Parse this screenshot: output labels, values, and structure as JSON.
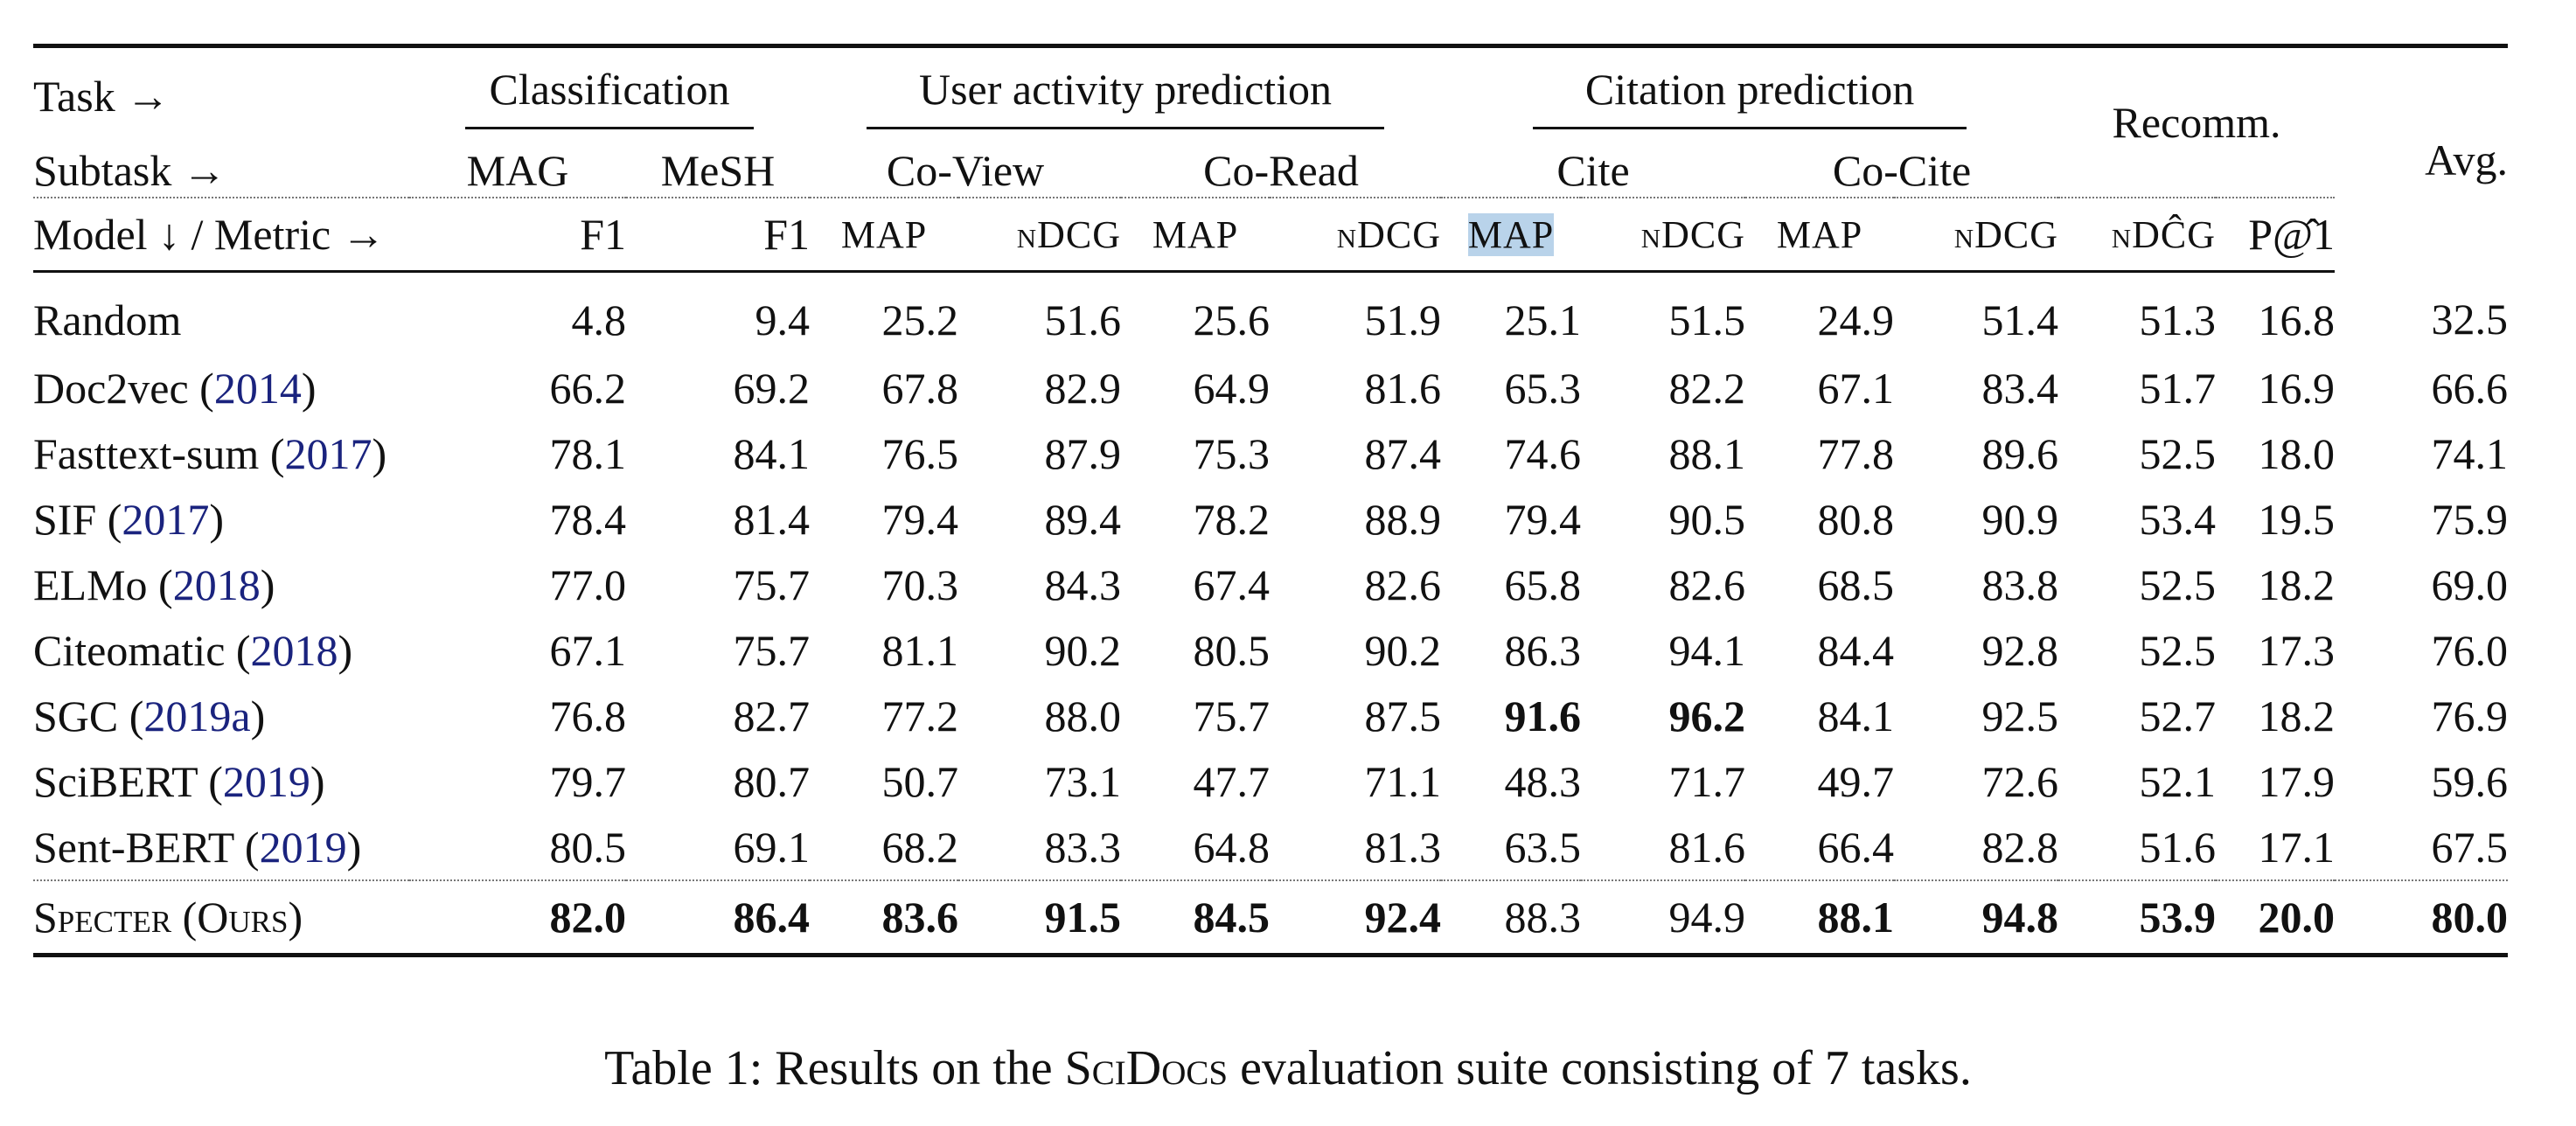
{
  "table": {
    "header": {
      "task_label": "Task →",
      "subtask_label": "Subtask →",
      "metric_label": "Model ↓ / Metric →",
      "tasks": [
        "Classification",
        "User activity prediction",
        "Citation prediction",
        "Recomm.",
        "Avg."
      ],
      "subtasks": [
        "MAG",
        "MeSH",
        "Co-View",
        "Co-Read",
        "Cite",
        "Co-Cite"
      ],
      "metrics": [
        "F1",
        "F1",
        "MAP",
        "nDCG",
        "MAP",
        "nDCG",
        "MAP",
        "nDCG",
        "MAP",
        "nDCG",
        "nDĈG",
        "P@̂1"
      ]
    },
    "rows": [
      {
        "model": "Random",
        "cite": "",
        "values": [
          "4.8",
          "9.4",
          "25.2",
          "51.6",
          "25.6",
          "51.9",
          "25.1",
          "51.5",
          "24.9",
          "51.4",
          "51.3",
          "16.8",
          "32.5"
        ]
      },
      {
        "model": "Doc2vec (",
        "cite": "2014",
        "values": [
          "66.2",
          "69.2",
          "67.8",
          "82.9",
          "64.9",
          "81.6",
          "65.3",
          "82.2",
          "67.1",
          "83.4",
          "51.7",
          "16.9",
          "66.6"
        ]
      },
      {
        "model": "Fasttext-sum (",
        "cite": "2017",
        "values": [
          "78.1",
          "84.1",
          "76.5",
          "87.9",
          "75.3",
          "87.4",
          "74.6",
          "88.1",
          "77.8",
          "89.6",
          "52.5",
          "18.0",
          "74.1"
        ]
      },
      {
        "model": "SIF (",
        "cite": "2017",
        "values": [
          "78.4",
          "81.4",
          "79.4",
          "89.4",
          "78.2",
          "88.9",
          "79.4",
          "90.5",
          "80.8",
          "90.9",
          "53.4",
          "19.5",
          "75.9"
        ]
      },
      {
        "model": "ELMo (",
        "cite": "2018",
        "values": [
          "77.0",
          "75.7",
          "70.3",
          "84.3",
          "67.4",
          "82.6",
          "65.8",
          "82.6",
          "68.5",
          "83.8",
          "52.5",
          "18.2",
          "69.0"
        ]
      },
      {
        "model": "Citeomatic (",
        "cite": "2018",
        "values": [
          "67.1",
          "75.7",
          "81.1",
          "90.2",
          "80.5",
          "90.2",
          "86.3",
          "94.1",
          "84.4",
          "92.8",
          "52.5",
          "17.3",
          "76.0"
        ]
      },
      {
        "model": "SGC (",
        "cite": "2019a",
        "values": [
          "76.8",
          "82.7",
          "77.2",
          "88.0",
          "75.7",
          "87.5",
          "91.6",
          "96.2",
          "84.1",
          "92.5",
          "52.7",
          "18.2",
          "76.9"
        ]
      },
      {
        "model": "SciBERT (",
        "cite": "2019",
        "values": [
          "79.7",
          "80.7",
          "50.7",
          "73.1",
          "47.7",
          "71.1",
          "48.3",
          "71.7",
          "49.7",
          "72.6",
          "52.1",
          "17.9",
          "59.6"
        ]
      },
      {
        "model": "Sent-BERT (",
        "cite": "2019",
        "values": [
          "80.5",
          "69.1",
          "68.2",
          "83.3",
          "64.8",
          "81.3",
          "63.5",
          "81.6",
          "66.4",
          "82.8",
          "51.6",
          "17.1",
          "67.5"
        ]
      },
      {
        "model": "Specter (Ours)",
        "cite": "",
        "values": [
          "82.0",
          "86.4",
          "83.6",
          "91.5",
          "84.5",
          "92.4",
          "88.3",
          "94.9",
          "88.1",
          "94.8",
          "53.9",
          "20.0",
          "80.0"
        ]
      }
    ],
    "bold_cells": [
      [
        6,
        6
      ],
      [
        6,
        7
      ],
      [
        9,
        0
      ],
      [
        9,
        1
      ],
      [
        9,
        2
      ],
      [
        9,
        3
      ],
      [
        9,
        4
      ],
      [
        9,
        5
      ],
      [
        9,
        8
      ],
      [
        9,
        9
      ],
      [
        9,
        10
      ],
      [
        9,
        11
      ],
      [
        9,
        12
      ]
    ]
  },
  "caption": {
    "prefix": "Table 1: Results on the ",
    "suite": "SciDocs",
    "suffix": " evaluation suite consisting of 7 tasks."
  }
}
